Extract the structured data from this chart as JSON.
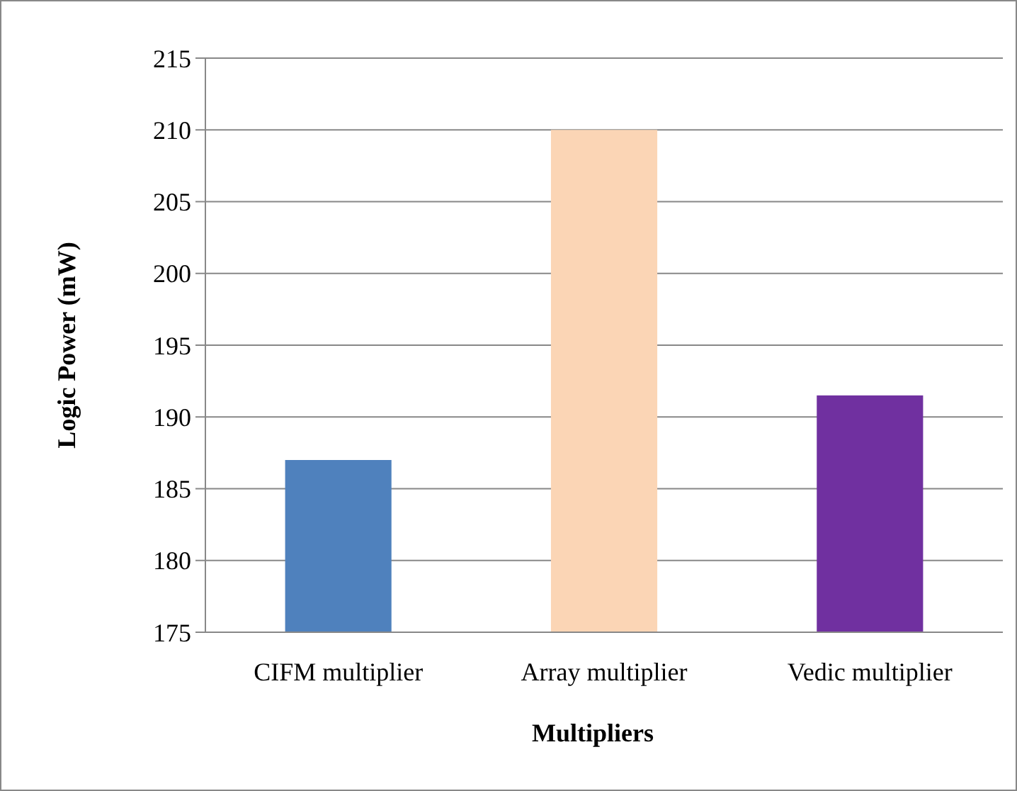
{
  "chart_data": {
    "type": "bar",
    "xlabel": "Multipliers",
    "ylabel": "Logic Power (mW)",
    "categories": [
      "CIFM multiplier",
      "Array multiplier",
      "Vedic multiplier"
    ],
    "values": [
      187,
      210,
      191.5
    ],
    "colors": [
      "#4f81bd",
      "#fbd5b5",
      "#7030a0"
    ],
    "ylim": [
      175,
      215
    ],
    "yticks": [
      175,
      180,
      185,
      190,
      195,
      200,
      205,
      210,
      215
    ],
    "grid": "y"
  }
}
